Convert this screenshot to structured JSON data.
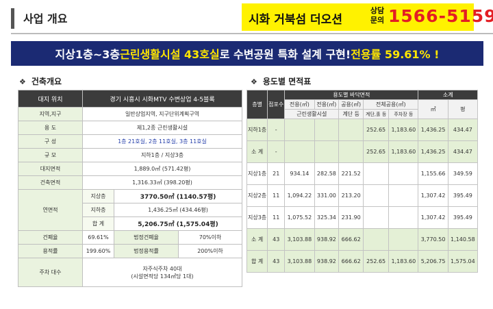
{
  "header": {
    "section_title": "사업 개요",
    "cta_name": "시화 거북섬 더오션",
    "cta_label_1": "상담",
    "cta_label_2": "문의",
    "cta_phone": "1566-5159"
  },
  "banner": {
    "part1": "지상1층~3층 ",
    "part2": "근린생활시설 43호실",
    "part3": "로 수변공원 특화 설계 구현! ",
    "part4": "전용률 59.61% !"
  },
  "left_section": {
    "bullet": "❖",
    "title": "건축개요",
    "header": {
      "label": "대지 위치",
      "value": "경기 시흥시 시화MTV 수변상업 4-5블록"
    },
    "rows": {
      "zone_label": "지역,지구",
      "zone_value": "일반상업지역, 지구단위계획구역",
      "use_label": "용    도",
      "use_value": "제1,2종 근린생활시설",
      "config_label": "구    성",
      "config_value": "1층 21호실, 2층 11호실, 3층 11호실",
      "scale_label": "규    모",
      "scale_value": "지하1층 / 지상3층",
      "site_label": "대지면적",
      "site_value": "1,889.0㎡ (571.42평)",
      "building_label": "건축면적",
      "building_value": "1,316.33㎡ (398.20평)",
      "floor_label": "연면적",
      "above_label": "지상층",
      "above_value": "3770.50㎡ (1140.57평)",
      "below_label": "지하층",
      "below_value": "1,436.25㎡ (434.46평)",
      "total_label": "합    계",
      "total_value": "5,206.75㎡ (1,575.04평)",
      "bcr_label": "건폐율",
      "bcr_value": "69.61%",
      "bcr_legal_label": "법정건폐율",
      "bcr_legal_value": "70%이하",
      "far_label": "용적률",
      "far_value": "199.60%",
      "far_legal_label": "법정용적률",
      "far_legal_value": "200%이하",
      "parking_label": "주차 대수",
      "parking_value_1": "자주식주차 40대",
      "parking_value_2": "(시설면적당 134㎡당 1대)"
    }
  },
  "right_section": {
    "bullet": "❖",
    "title": "용도별 면적표",
    "headers": {
      "floor": "층별",
      "units": "점포수",
      "floor_area": "용도별 바닥면적",
      "subtotal": "소계",
      "exclusive": "전용(㎡)",
      "common": "전용(㎡)",
      "common2": "공용(㎡)",
      "other_common": "전체공용(㎡)",
      "neighborhood": "근린생활시설",
      "stairs": "계단 등",
      "machine": "계단,홀 등",
      "parking": "주차장 등",
      "sqm": "㎡",
      "pyeong": "평"
    },
    "rows": [
      {
        "floor": "지하1층",
        "units": "-",
        "exclusive": "",
        "common": "",
        "stairs": "",
        "machine": "252.65",
        "parking": "1,183.60",
        "sqm": "1,436.25",
        "pyeong": "434.47",
        "green": true
      },
      {
        "floor": "소  계",
        "units": "-",
        "exclusive": "",
        "common": "",
        "stairs": "",
        "machine": "252.65",
        "parking": "1,183.60",
        "sqm": "1,436.25",
        "pyeong": "434.47",
        "green": true
      },
      {
        "floor": "지상1층",
        "units": "21",
        "exclusive": "934.14",
        "common": "282.58",
        "stairs": "221.52",
        "machine": "",
        "parking": "",
        "sqm": "1,155.66",
        "pyeong": "349.59",
        "green": false
      },
      {
        "floor": "지상2층",
        "units": "11",
        "exclusive": "1,094.22",
        "common": "331.00",
        "stairs": "213.20",
        "machine": "",
        "parking": "",
        "sqm": "1,307.42",
        "pyeong": "395.49",
        "green": false
      },
      {
        "floor": "지상3층",
        "units": "11",
        "exclusive": "1,075.52",
        "common": "325.34",
        "stairs": "231.90",
        "machine": "",
        "parking": "",
        "sqm": "1,307.42",
        "pyeong": "395.49",
        "green": false
      },
      {
        "floor": "소  계",
        "units": "43",
        "exclusive": "3,103.88",
        "common": "938.92",
        "stairs": "666.62",
        "machine": "",
        "parking": "",
        "sqm": "3,770.50",
        "pyeong": "1,140.58",
        "green": true
      },
      {
        "floor": "합  계",
        "units": "43",
        "exclusive": "3,103.88",
        "common": "938.92",
        "stairs": "666.62",
        "machine": "252.65",
        "parking": "1,183.60",
        "sqm": "5,206.75",
        "pyeong": "1,575.04",
        "green": true
      }
    ]
  }
}
